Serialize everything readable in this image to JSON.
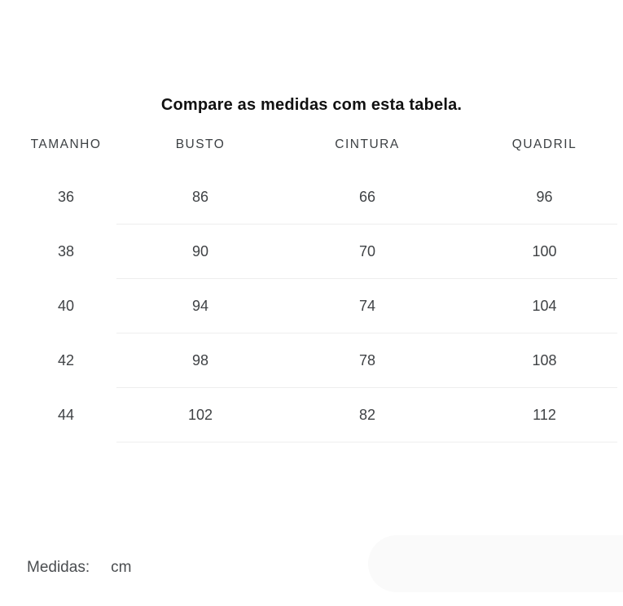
{
  "title": "Compare as medidas com esta tabela.",
  "table": {
    "columns": [
      "TAMANHO",
      "BUSTO",
      "CINTURA",
      "QUADRIL"
    ],
    "rows": [
      [
        "36",
        "86",
        "66",
        "96"
      ],
      [
        "38",
        "90",
        "70",
        "100"
      ],
      [
        "40",
        "94",
        "74",
        "104"
      ],
      [
        "42",
        "98",
        "78",
        "108"
      ],
      [
        "44",
        "102",
        "82",
        "112"
      ]
    ]
  },
  "footer": {
    "label": "Medidas:",
    "unit": "cm"
  },
  "colors": {
    "title_text": "#111111",
    "header_text": "#3c4043",
    "cell_text": "#3f4245",
    "divider": "#eeeeee",
    "footer_text": "#4a4d50",
    "pill_background": "#fafafa"
  }
}
